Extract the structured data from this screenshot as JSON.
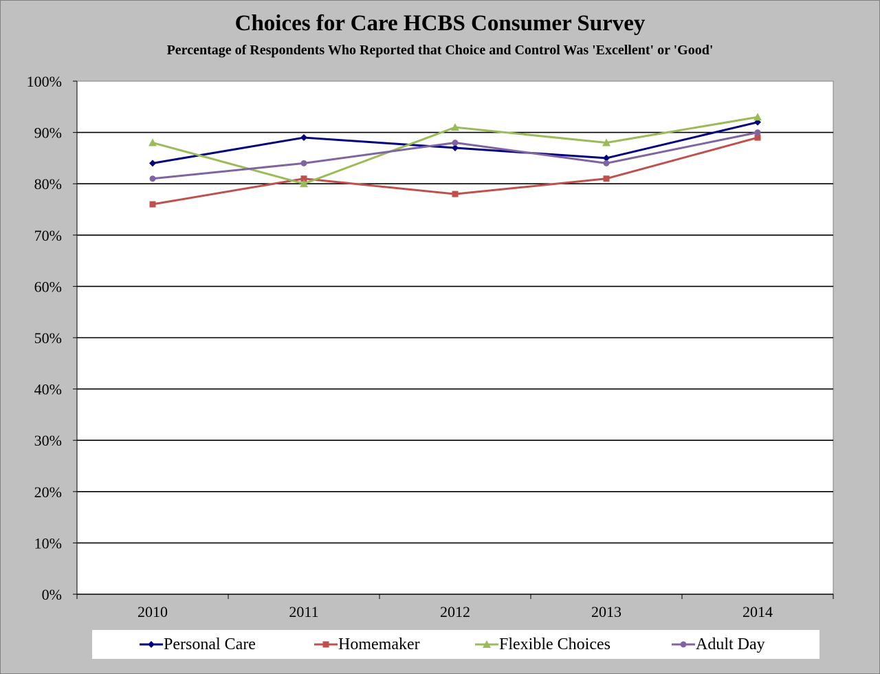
{
  "chart_data": {
    "type": "line",
    "title": "Choices for Care HCBS Consumer Survey",
    "subtitle": "Percentage of Respondents Who Reported that Choice and Control Was 'Excellent' or 'Good'",
    "categories": [
      "2010",
      "2011",
      "2012",
      "2013",
      "2014"
    ],
    "ylim": [
      0,
      100
    ],
    "yticks": [
      "0%",
      "10%",
      "20%",
      "30%",
      "40%",
      "50%",
      "60%",
      "70%",
      "80%",
      "90%",
      "100%"
    ],
    "grid": true,
    "legend_position": "bottom",
    "series": [
      {
        "name": "Personal Care",
        "values": [
          84,
          89,
          87,
          85,
          92
        ],
        "color": "#000080",
        "marker": "diamond"
      },
      {
        "name": "Homemaker",
        "values": [
          76,
          81,
          78,
          81,
          89
        ],
        "color": "#c0504d",
        "marker": "square"
      },
      {
        "name": "Flexible Choices",
        "values": [
          88,
          80,
          91,
          88,
          93
        ],
        "color": "#9bbb59",
        "marker": "triangle"
      },
      {
        "name": "Adult Day",
        "values": [
          81,
          84,
          88,
          84,
          90
        ],
        "color": "#8064a2",
        "marker": "circle"
      }
    ]
  }
}
